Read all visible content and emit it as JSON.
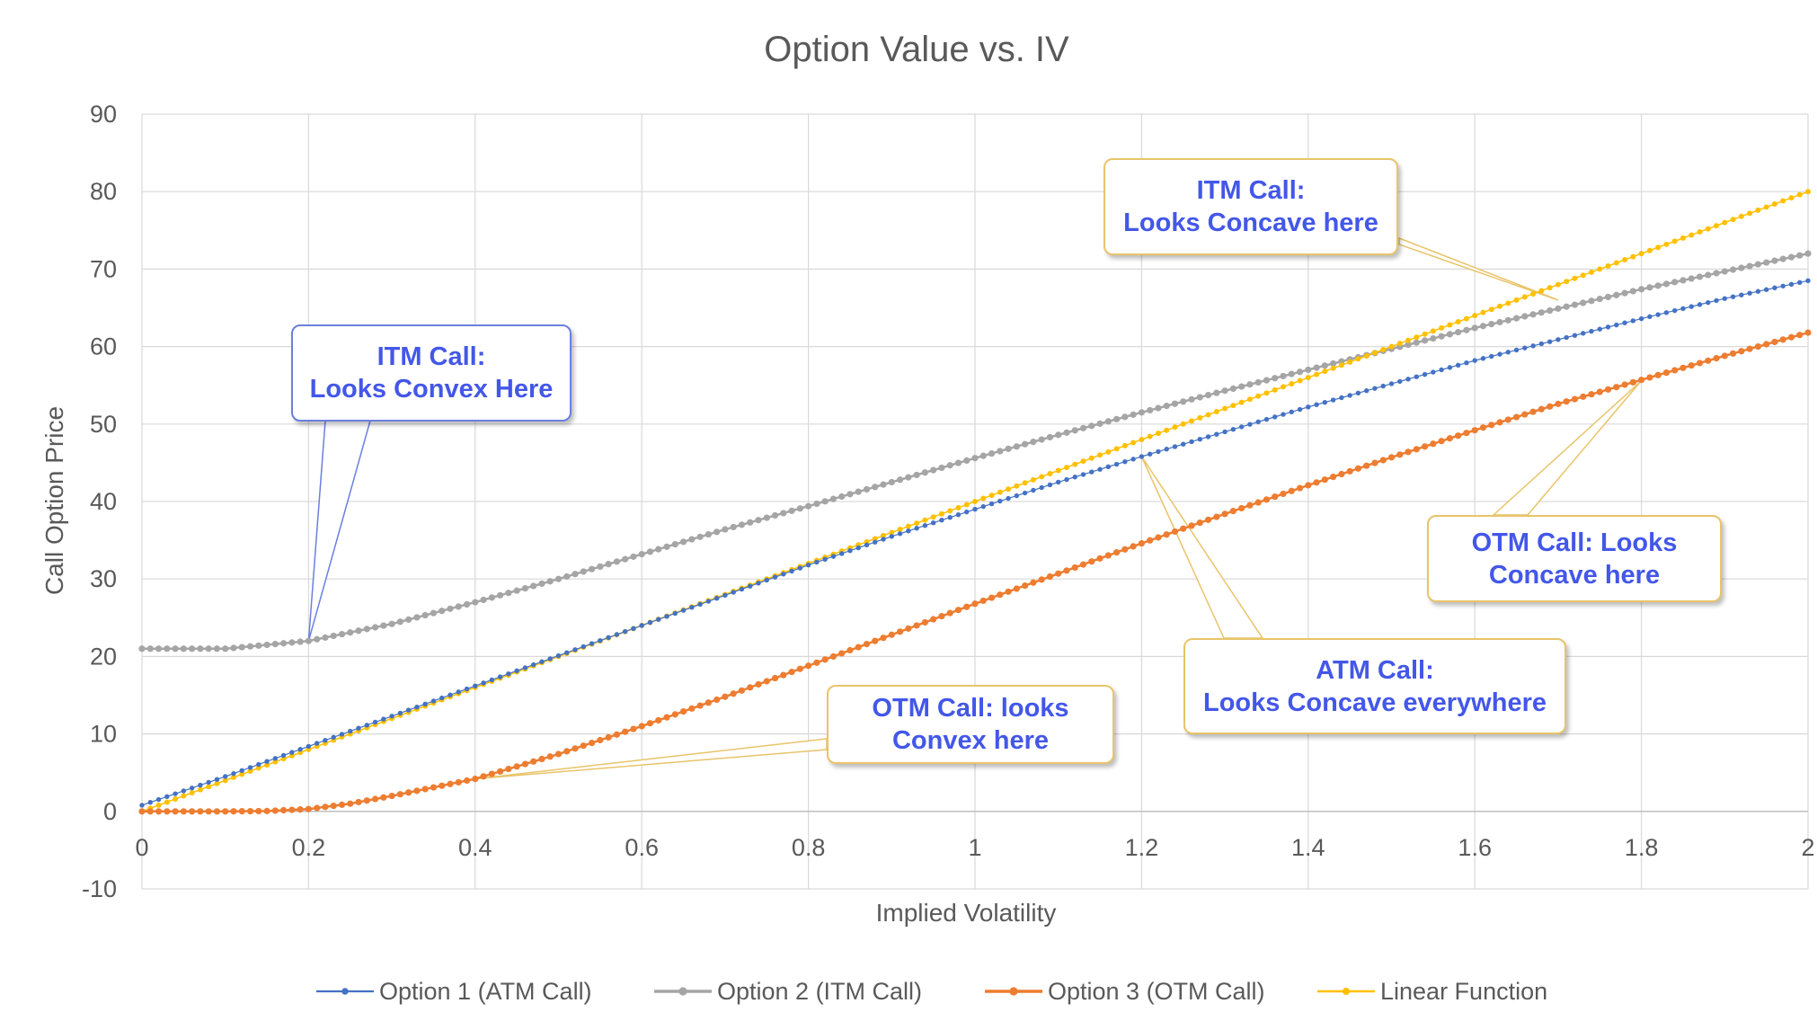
{
  "chart_data": {
    "type": "scatter",
    "title": "Option Value vs. IV",
    "xlabel": "Implied Volatility",
    "ylabel": "Call Option Price",
    "xlim": [
      0,
      2
    ],
    "ylim": [
      -10,
      90
    ],
    "x_ticks": [
      "0",
      "0.2",
      "0.4",
      "0.6",
      "0.8",
      "1",
      "1.2",
      "1.4",
      "1.6",
      "1.8",
      "2"
    ],
    "y_ticks": [
      "-10",
      "0",
      "10",
      "20",
      "30",
      "40",
      "50",
      "60",
      "70",
      "80",
      "90"
    ],
    "grid": true,
    "legend_position": "bottom",
    "series": [
      {
        "name": "Option 1 (ATM Call)",
        "color": "#4472c4",
        "x": [
          0.0,
          0.1,
          0.2,
          0.3,
          0.4,
          0.5,
          0.6,
          0.7,
          0.8,
          0.9,
          1.0,
          1.1,
          1.2,
          1.3,
          1.4,
          1.5,
          1.6,
          1.7,
          1.8,
          1.9,
          2.0
        ],
        "y": [
          0.8,
          4.5,
          8.4,
          12.3,
          16.2,
          20.1,
          24.0,
          27.9,
          31.8,
          35.5,
          39.0,
          42.5,
          45.8,
          49.0,
          52.2,
          55.2,
          58.2,
          60.9,
          63.6,
          66.2,
          68.5
        ]
      },
      {
        "name": "Option 2 (ITM Call)",
        "color": "#a5a5a5",
        "x": [
          0.0,
          0.1,
          0.2,
          0.3,
          0.4,
          0.5,
          0.6,
          0.7,
          0.8,
          0.9,
          1.0,
          1.1,
          1.2,
          1.3,
          1.4,
          1.5,
          1.6,
          1.7,
          1.8,
          1.9,
          2.0
        ],
        "y": [
          21.0,
          21.0,
          22.0,
          24.2,
          27.0,
          30.0,
          33.2,
          36.4,
          39.4,
          42.5,
          45.6,
          48.6,
          51.5,
          54.3,
          57.0,
          59.7,
          62.4,
          64.9,
          67.4,
          69.7,
          72.0
        ]
      },
      {
        "name": "Option 3 (OTM Call)",
        "color": "#ed7d31",
        "x": [
          0.0,
          0.1,
          0.15,
          0.2,
          0.25,
          0.3,
          0.4,
          0.5,
          0.6,
          0.7,
          0.8,
          0.9,
          1.0,
          1.1,
          1.2,
          1.3,
          1.4,
          1.5,
          1.6,
          1.7,
          1.8,
          1.9,
          2.0
        ],
        "y": [
          0.0,
          0.0,
          0.05,
          0.3,
          1.0,
          2.0,
          4.2,
          7.4,
          11.0,
          14.8,
          18.8,
          22.8,
          26.8,
          30.7,
          34.6,
          38.4,
          42.1,
          45.7,
          49.2,
          52.6,
          55.7,
          58.8,
          61.8
        ]
      },
      {
        "name": "Linear Function",
        "color": "#ffc000",
        "x": [
          0.0,
          2.0
        ],
        "y": [
          0.0,
          80.0
        ]
      }
    ],
    "annotations": [
      {
        "id": "itm-convex",
        "lines": [
          "ITM Call:",
          "Looks Convex Here"
        ],
        "style": "blue",
        "target": [
          0.2,
          22.0
        ]
      },
      {
        "id": "itm-concave",
        "lines": [
          "ITM Call:",
          "Looks Concave here"
        ],
        "style": "gold",
        "target": [
          1.7,
          66.0
        ]
      },
      {
        "id": "otm-concave",
        "lines": [
          "OTM Call: Looks",
          "Concave here"
        ],
        "style": "gold",
        "target": [
          1.8,
          55.6
        ]
      },
      {
        "id": "atm-concave",
        "lines": [
          "ATM Call:",
          "Looks Concave everywhere"
        ],
        "style": "gold",
        "target": [
          1.2,
          45.8
        ]
      },
      {
        "id": "otm-convex",
        "lines": [
          "OTM Call: looks",
          "Convex here"
        ],
        "style": "gold",
        "target": [
          0.4,
          4.2
        ]
      }
    ]
  }
}
